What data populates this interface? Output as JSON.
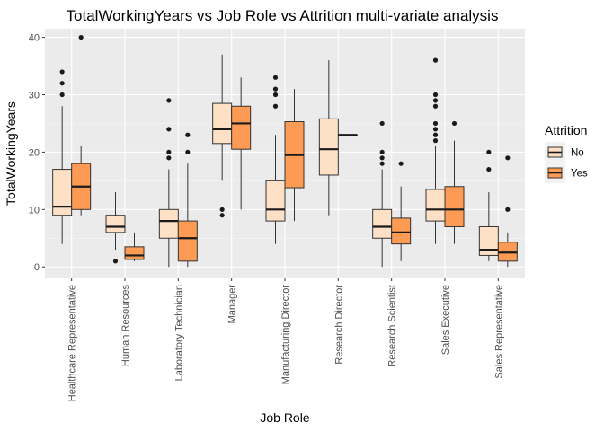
{
  "chart_data": {
    "type": "boxplot",
    "title": "TotalWorkingYears vs Job Role vs Attrition multi-variate analysis",
    "xlabel": "Job Role",
    "ylabel": "TotalWorkingYears",
    "ylim": [
      -2,
      41.5
    ],
    "yticks": [
      0,
      10,
      20,
      30,
      40
    ],
    "grid": true,
    "legend": {
      "title": "Attrition",
      "position": "right"
    },
    "categories": [
      "Healthcare Representative",
      "Human Resources",
      "Laboratory Technician",
      "Manager",
      "Manufacturing Director",
      "Research Director",
      "Research Scientist",
      "Sales Executive",
      "Sales Representative"
    ],
    "series": [
      {
        "name": "No",
        "color": "#fee0c6",
        "boxes": [
          {
            "whisker_low": 4,
            "q1": 9,
            "median": 10.5,
            "q3": 17,
            "whisker_high": 28,
            "outliers": [
              30,
              32,
              34
            ]
          },
          {
            "whisker_low": 3,
            "q1": 6,
            "median": 7,
            "q3": 9,
            "whisker_high": 13,
            "outliers": [
              1
            ]
          },
          {
            "whisker_low": 0,
            "q1": 5,
            "median": 8,
            "q3": 10,
            "whisker_high": 17,
            "outliers": [
              19,
              20,
              24,
              29
            ]
          },
          {
            "whisker_low": 15,
            "q1": 21.5,
            "median": 24,
            "q3": 28.5,
            "whisker_high": 37,
            "outliers": [
              9,
              10
            ]
          },
          {
            "whisker_low": 4,
            "q1": 8,
            "median": 10,
            "q3": 15,
            "whisker_high": 23,
            "outliers": [
              28,
              30,
              31,
              33
            ]
          },
          {
            "whisker_low": 9,
            "q1": 16,
            "median": 20.5,
            "q3": 25.8,
            "whisker_high": 36,
            "outliers": []
          },
          {
            "whisker_low": 0,
            "q1": 5,
            "median": 7,
            "q3": 10,
            "whisker_high": 17,
            "outliers": [
              18,
              19,
              20,
              25
            ]
          },
          {
            "whisker_low": 4,
            "q1": 8,
            "median": 10,
            "q3": 13.5,
            "whisker_high": 21,
            "outliers": [
              22,
              23,
              24,
              25,
              28,
              29,
              30,
              36
            ]
          },
          {
            "whisker_low": 1,
            "q1": 2,
            "median": 3,
            "q3": 7,
            "whisker_high": 13,
            "outliers": [
              17,
              20
            ]
          }
        ]
      },
      {
        "name": "Yes",
        "color": "#fd9b54",
        "boxes": [
          {
            "whisker_low": 9,
            "q1": 10,
            "median": 14,
            "q3": 18,
            "whisker_high": 21,
            "outliers": [
              40
            ]
          },
          {
            "whisker_low": 1,
            "q1": 1.3,
            "median": 2,
            "q3": 3.5,
            "whisker_high": 6,
            "outliers": []
          },
          {
            "whisker_low": 0,
            "q1": 1,
            "median": 5,
            "q3": 8,
            "whisker_high": 18,
            "outliers": [
              20,
              23
            ]
          },
          {
            "whisker_low": 10,
            "q1": 20.5,
            "median": 25,
            "q3": 28,
            "whisker_high": 33,
            "outliers": []
          },
          {
            "whisker_low": 8,
            "q1": 13.8,
            "median": 19.5,
            "q3": 25.3,
            "whisker_high": 31,
            "outliers": []
          },
          {
            "whisker_low": 23,
            "q1": 23,
            "median": 23,
            "q3": 23,
            "whisker_high": 23,
            "outliers": []
          },
          {
            "whisker_low": 1,
            "q1": 4,
            "median": 6,
            "q3": 8.5,
            "whisker_high": 14,
            "outliers": [
              18
            ]
          },
          {
            "whisker_low": 4,
            "q1": 7,
            "median": 10,
            "q3": 14,
            "whisker_high": 22,
            "outliers": [
              25
            ]
          },
          {
            "whisker_low": 0,
            "q1": 1,
            "median": 2.5,
            "q3": 4.3,
            "whisker_high": 6,
            "outliers": [
              10,
              19
            ]
          }
        ]
      }
    ]
  }
}
